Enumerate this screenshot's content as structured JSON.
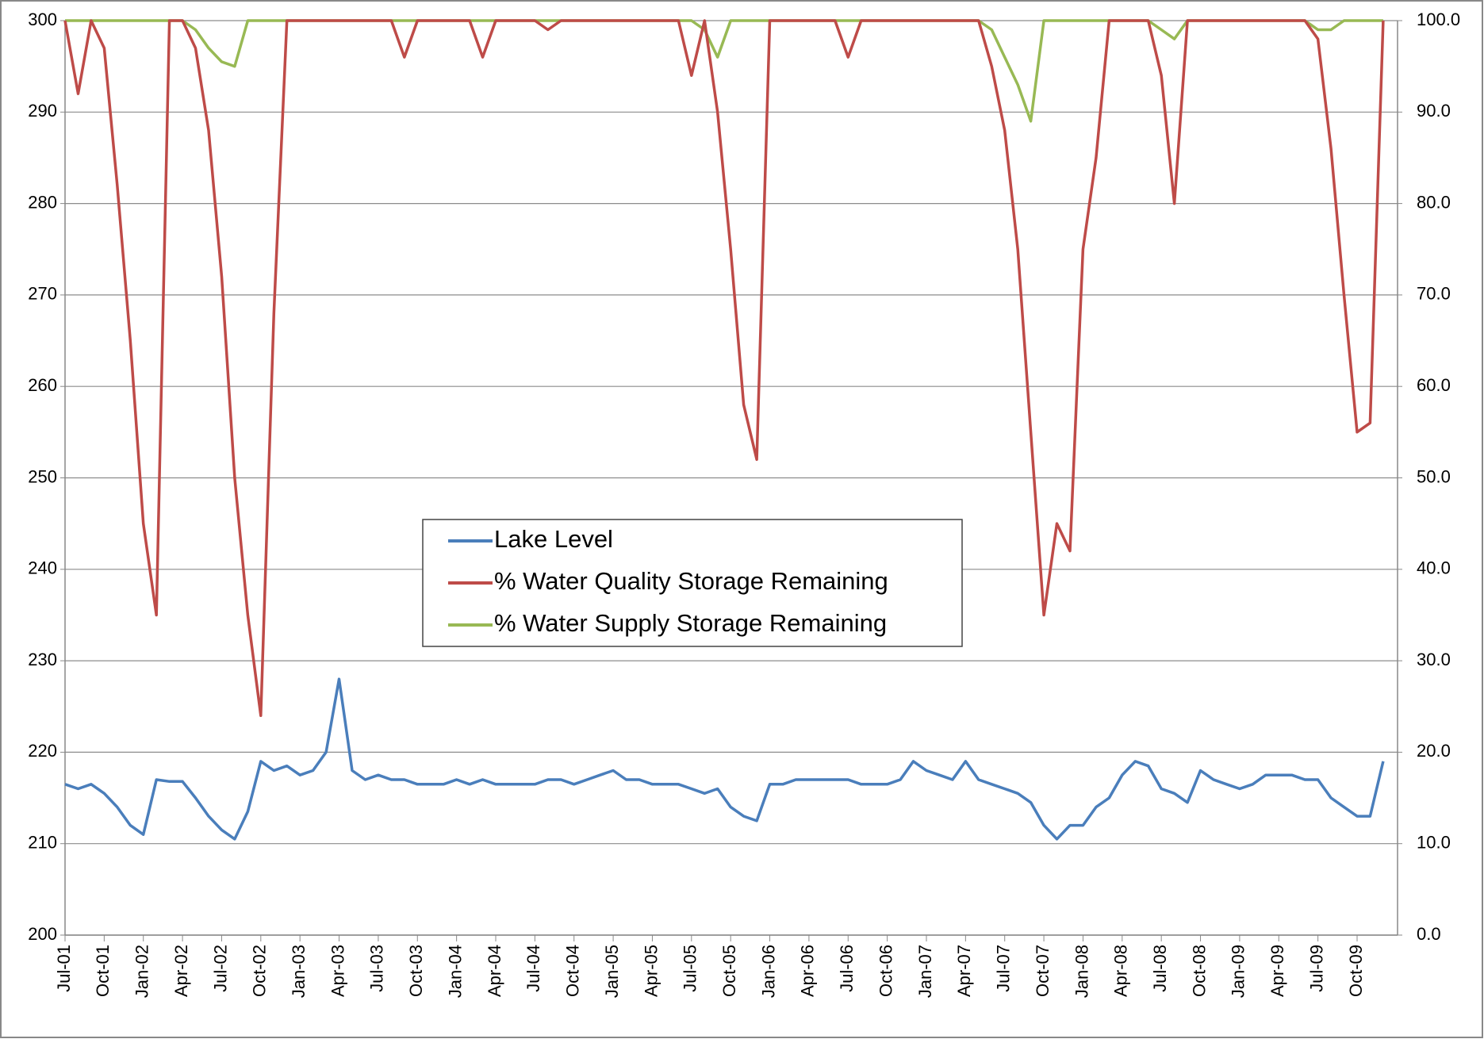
{
  "chart_data": {
    "type": "line",
    "x": [
      "Jul-01",
      "Aug-01",
      "Sep-01",
      "Oct-01",
      "Nov-01",
      "Dec-01",
      "Jan-02",
      "Feb-02",
      "Mar-02",
      "Apr-02",
      "May-02",
      "Jun-02",
      "Jul-02",
      "Aug-02",
      "Sep-02",
      "Oct-02",
      "Nov-02",
      "Dec-02",
      "Jan-03",
      "Feb-03",
      "Mar-03",
      "Apr-03",
      "May-03",
      "Jun-03",
      "Jul-03",
      "Aug-03",
      "Sep-03",
      "Oct-03",
      "Nov-03",
      "Dec-03",
      "Jan-04",
      "Feb-04",
      "Mar-04",
      "Apr-04",
      "May-04",
      "Jun-04",
      "Jul-04",
      "Aug-04",
      "Sep-04",
      "Oct-04",
      "Nov-04",
      "Dec-04",
      "Jan-05",
      "Feb-05",
      "Mar-05",
      "Apr-05",
      "May-05",
      "Jun-05",
      "Jul-05",
      "Aug-05",
      "Sep-05",
      "Oct-05",
      "Nov-05",
      "Dec-05",
      "Jan-06",
      "Feb-06",
      "Mar-06",
      "Apr-06",
      "May-06",
      "Jun-06",
      "Jul-06",
      "Aug-06",
      "Sep-06",
      "Oct-06",
      "Nov-06",
      "Dec-06",
      "Jan-07",
      "Feb-07",
      "Mar-07",
      "Apr-07",
      "May-07",
      "Jun-07",
      "Jul-07",
      "Aug-07",
      "Sep-07",
      "Oct-07",
      "Nov-07",
      "Dec-07",
      "Jan-08",
      "Feb-08",
      "Mar-08",
      "Apr-08",
      "May-08",
      "Jun-08",
      "Jul-08",
      "Aug-08",
      "Sep-08",
      "Oct-08",
      "Nov-08",
      "Dec-08",
      "Jan-09",
      "Feb-09",
      "Mar-09",
      "Apr-09",
      "May-09",
      "Jun-09",
      "Jul-09",
      "Aug-09",
      "Sep-09",
      "Oct-09",
      "Nov-09",
      "Dec-09"
    ],
    "xticks": [
      "Jul-01",
      "Oct-01",
      "Jan-02",
      "Apr-02",
      "Jul-02",
      "Oct-02",
      "Jan-03",
      "Apr-03",
      "Jul-03",
      "Oct-03",
      "Jan-04",
      "Apr-04",
      "Jul-04",
      "Oct-04",
      "Jan-05",
      "Apr-05",
      "Jul-05",
      "Oct-05",
      "Jan-06",
      "Apr-06",
      "Jul-06",
      "Oct-06",
      "Jan-07",
      "Apr-07",
      "Jul-07",
      "Oct-07",
      "Jan-08",
      "Apr-08",
      "Jul-08",
      "Oct-08",
      "Jan-09",
      "Apr-09",
      "Jul-09",
      "Oct-09"
    ],
    "series": [
      {
        "name": "Lake Level",
        "color": "#4a7ebb",
        "axis": "y",
        "values": [
          216.5,
          216,
          216.5,
          215.5,
          214,
          212,
          211,
          217,
          216.8,
          216.8,
          215,
          213,
          211.5,
          210.5,
          213.5,
          219,
          218,
          218.5,
          217.5,
          218,
          220,
          228,
          218,
          217,
          217.5,
          217,
          217,
          216.5,
          216.5,
          216.5,
          217,
          216.5,
          217,
          216.5,
          216.5,
          216.5,
          216.5,
          217,
          217,
          216.5,
          217,
          217.5,
          218,
          217,
          217,
          216.5,
          216.5,
          216.5,
          216,
          215.5,
          216,
          214,
          213,
          212.5,
          216.5,
          216.5,
          217,
          217,
          217,
          217,
          217,
          216.5,
          216.5,
          216.5,
          217,
          219,
          218,
          217.5,
          217,
          219,
          217,
          216.5,
          216,
          215.5,
          214.5,
          212,
          210.5,
          212,
          212,
          214,
          215,
          217.5,
          219,
          218.5,
          216,
          215.5,
          214.5,
          218,
          217,
          216.5,
          216,
          216.5,
          217.5,
          217.5,
          217.5,
          217,
          217,
          215,
          214,
          213,
          213,
          219
        ]
      },
      {
        "name": "% Water Quality Storage  Remaining",
        "color": "#be4b48",
        "axis": "y2",
        "values": [
          100,
          92,
          100,
          97,
          82,
          65,
          45,
          35,
          100,
          100,
          97,
          88,
          72,
          50,
          35,
          24,
          68,
          100,
          100,
          100,
          100,
          100,
          100,
          100,
          100,
          100,
          96,
          100,
          100,
          100,
          100,
          100,
          96,
          100,
          100,
          100,
          100,
          99,
          100,
          100,
          100,
          100,
          100,
          100,
          100,
          100,
          100,
          100,
          94,
          100,
          90,
          75,
          58,
          52,
          100,
          100,
          100,
          100,
          100,
          100,
          96,
          100,
          100,
          100,
          100,
          100,
          100,
          100,
          100,
          100,
          100,
          95,
          88,
          75,
          55,
          35,
          45,
          42,
          75,
          85,
          100,
          100,
          100,
          100,
          94,
          80,
          100,
          100,
          100,
          100,
          100,
          100,
          100,
          100,
          100,
          100,
          98,
          86,
          70,
          55,
          56,
          100
        ]
      },
      {
        "name": "% Water Supply Storage Remaining",
        "color": "#98b954",
        "axis": "y2",
        "values": [
          100,
          100,
          100,
          100,
          100,
          100,
          100,
          100,
          100,
          100,
          99,
          97,
          95.5,
          95,
          100,
          100,
          100,
          100,
          100,
          100,
          100,
          100,
          100,
          100,
          100,
          100,
          100,
          100,
          100,
          100,
          100,
          100,
          100,
          100,
          100,
          100,
          100,
          100,
          100,
          100,
          100,
          100,
          100,
          100,
          100,
          100,
          100,
          100,
          100,
          99,
          96,
          100,
          100,
          100,
          100,
          100,
          100,
          100,
          100,
          100,
          100,
          100,
          100,
          100,
          100,
          100,
          100,
          100,
          100,
          100,
          100,
          99,
          96,
          93,
          89,
          100,
          100,
          100,
          100,
          100,
          100,
          100,
          100,
          100,
          99,
          98,
          100,
          100,
          100,
          100,
          100,
          100,
          100,
          100,
          100,
          100,
          99,
          99,
          100,
          100,
          100,
          100
        ]
      }
    ],
    "ylim": [
      200,
      300
    ],
    "yticks": [
      200,
      210,
      220,
      230,
      240,
      250,
      260,
      270,
      280,
      290,
      300
    ],
    "y2lim": [
      0,
      100
    ],
    "y2ticks": [
      {
        "value": 0,
        "label": "0.0"
      },
      {
        "value": 10,
        "label": "10.0"
      },
      {
        "value": 20,
        "label": "20.0"
      },
      {
        "value": 30,
        "label": "30.0"
      },
      {
        "value": 40,
        "label": "40.0"
      },
      {
        "value": 50,
        "label": "50.0"
      },
      {
        "value": 60,
        "label": "60.0"
      },
      {
        "value": 70,
        "label": "70.0"
      },
      {
        "value": 80,
        "label": "80.0"
      },
      {
        "value": 90,
        "label": "90.0"
      },
      {
        "value": 100,
        "label": "100.0"
      }
    ],
    "grid": true,
    "legend": "center"
  }
}
